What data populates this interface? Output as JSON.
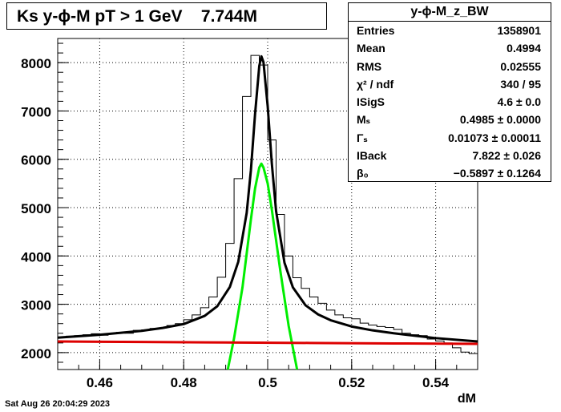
{
  "title": "Ks y-ϕ-M pT > 1 GeV",
  "title_count": "7.744M",
  "stats_box": {
    "name": "y-ϕ-M_z_BW",
    "rows": [
      {
        "label": "Entries",
        "value": "1358901"
      },
      {
        "label": "Mean",
        "value": "0.4994"
      },
      {
        "label": "RMS",
        "value": "0.02555"
      },
      {
        "label": "χ² / ndf",
        "value": "340 / 95"
      },
      {
        "label": "ISigS",
        "value": "4.6 ± 0.0"
      },
      {
        "label": "Mₛ",
        "value": "0.4985 ± 0.0000"
      },
      {
        "label": "Γₛ",
        "value": "0.01073 ± 0.00011"
      },
      {
        "label": "IBack",
        "value": "7.822 ± 0.026"
      },
      {
        "label": "β₀",
        "value": "−0.5897 ± 0.1264"
      }
    ]
  },
  "footer_timestamp": "Sat Aug 26 20:04:29 2023",
  "chart_data": {
    "type": "line",
    "title": "Ks y-ϕ-M pT > 1 GeV    7.744M",
    "xlabel": "dM",
    "ylabel": "",
    "xlim": [
      0.45,
      0.55
    ],
    "ylim": [
      1650,
      8500
    ],
    "x_ticks": [
      0.46,
      0.48,
      0.5,
      0.52,
      0.54
    ],
    "x_tick_labels": [
      "0.46",
      "0.48",
      "0.5",
      "0.52",
      "0.54"
    ],
    "y_ticks": [
      2000,
      3000,
      4000,
      5000,
      6000,
      7000,
      8000
    ],
    "y_tick_labels": [
      "2000",
      "3000",
      "4000",
      "5000",
      "6000",
      "7000",
      "8000"
    ],
    "grid": true,
    "series": [
      {
        "kind": "histogram",
        "color": "#000000",
        "x": [
          0.451,
          0.453,
          0.455,
          0.457,
          0.459,
          0.461,
          0.463,
          0.465,
          0.467,
          0.469,
          0.471,
          0.473,
          0.475,
          0.477,
          0.479,
          0.481,
          0.483,
          0.485,
          0.487,
          0.489,
          0.491,
          0.493,
          0.495,
          0.497,
          0.499,
          0.501,
          0.503,
          0.505,
          0.507,
          0.509,
          0.511,
          0.513,
          0.515,
          0.517,
          0.519,
          0.521,
          0.523,
          0.525,
          0.527,
          0.529,
          0.531,
          0.533,
          0.535,
          0.537,
          0.539,
          0.541,
          0.543,
          0.545,
          0.547,
          0.549
        ],
        "values": [
          2310,
          2340,
          2350,
          2370,
          2390,
          2360,
          2390,
          2420,
          2400,
          2460,
          2470,
          2500,
          2510,
          2560,
          2600,
          2680,
          2780,
          2930,
          3150,
          3560,
          4260,
          5600,
          7300,
          8150,
          7950,
          6400,
          4860,
          4000,
          3550,
          3330,
          3150,
          3020,
          2880,
          2780,
          2720,
          2700,
          2610,
          2570,
          2540,
          2520,
          2480,
          2400,
          2370,
          2350,
          2280,
          2240,
          2200,
          2100,
          2010,
          1980
        ]
      },
      {
        "kind": "fit-total",
        "color": "#000000",
        "x": [
          0.45,
          0.46,
          0.47,
          0.475,
          0.48,
          0.485,
          0.488,
          0.491,
          0.493,
          0.495,
          0.496,
          0.497,
          0.498,
          0.4985,
          0.499,
          0.5,
          0.501,
          0.502,
          0.504,
          0.506,
          0.509,
          0.512,
          0.515,
          0.52,
          0.525,
          0.53,
          0.54,
          0.55
        ],
        "values": [
          2310,
          2370,
          2450,
          2510,
          2590,
          2760,
          2960,
          3360,
          3880,
          4890,
          5770,
          6940,
          7930,
          8130,
          8010,
          7100,
          5900,
          4930,
          3860,
          3350,
          2980,
          2790,
          2670,
          2540,
          2460,
          2400,
          2300,
          2230
        ]
      },
      {
        "kind": "fit-signal",
        "color": "#00ee00",
        "x": [
          0.4905,
          0.492,
          0.494,
          0.496,
          0.497,
          0.498,
          0.4985,
          0.499,
          0.5,
          0.501,
          0.503,
          0.505,
          0.507
        ],
        "values": [
          1650,
          2300,
          3350,
          4750,
          5400,
          5830,
          5910,
          5830,
          5500,
          4950,
          3700,
          2550,
          1650
        ]
      },
      {
        "kind": "fit-background",
        "color": "#dd0000",
        "x": [
          0.45,
          0.47,
          0.49,
          0.51,
          0.53,
          0.55
        ],
        "values": [
          2230,
          2220,
          2210,
          2200,
          2190,
          2180
        ]
      }
    ]
  }
}
